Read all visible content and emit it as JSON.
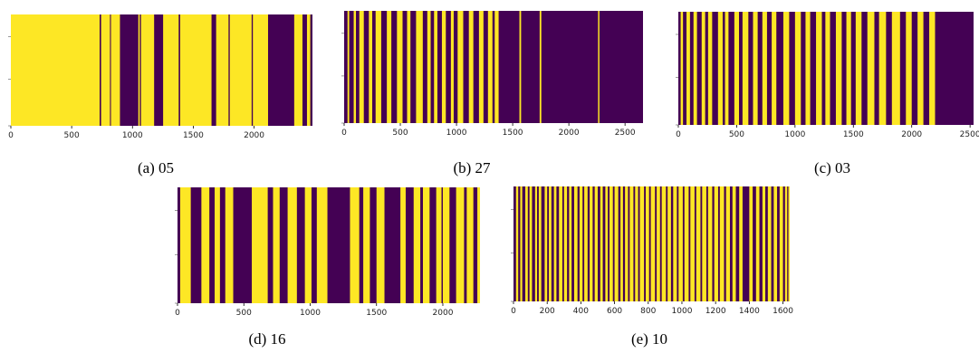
{
  "colors": {
    "on": "#fde725",
    "off": "#440154",
    "axis": "#000000"
  },
  "chart_data": [
    {
      "id": "a",
      "type": "heatmap",
      "caption": "(a) 05",
      "xlim": [
        0,
        2480
      ],
      "xticks": [
        0,
        500,
        1000,
        1500,
        2000
      ],
      "off_intervals": [
        [
          730,
          742
        ],
        [
          815,
          823
        ],
        [
          897,
          1048
        ],
        [
          1060,
          1070
        ],
        [
          1178,
          1252
        ],
        [
          1380,
          1392
        ],
        [
          1650,
          1688
        ],
        [
          1790,
          1800
        ],
        [
          1980,
          1990
        ],
        [
          2115,
          2330
        ],
        [
          2398,
          2435
        ],
        [
          2462,
          2480
        ]
      ]
    },
    {
      "id": "b",
      "type": "heatmap",
      "caption": "(b) 27",
      "xlim": [
        0,
        2660
      ],
      "xticks": [
        0,
        500,
        1000,
        1500,
        2000,
        2500
      ],
      "off_intervals": [
        [
          0,
          30
        ],
        [
          45,
          85
        ],
        [
          105,
          135
        ],
        [
          175,
          220
        ],
        [
          250,
          280
        ],
        [
          330,
          380
        ],
        [
          420,
          470
        ],
        [
          520,
          560
        ],
        [
          590,
          640
        ],
        [
          700,
          740
        ],
        [
          770,
          800
        ],
        [
          830,
          870
        ],
        [
          905,
          950
        ],
        [
          975,
          1010
        ],
        [
          1060,
          1110
        ],
        [
          1150,
          1200
        ],
        [
          1240,
          1280
        ],
        [
          1320,
          1340
        ],
        [
          1375,
          1560
        ],
        [
          1575,
          1740
        ],
        [
          1755,
          2260
        ],
        [
          2272,
          2660
        ]
      ]
    },
    {
      "id": "c",
      "type": "heatmap",
      "caption": "(c) 03",
      "xlim": [
        0,
        2530
      ],
      "xticks": [
        0,
        500,
        1000,
        1500,
        2000,
        2500
      ],
      "off_intervals": [
        [
          0,
          20
        ],
        [
          40,
          70
        ],
        [
          100,
          130
        ],
        [
          160,
          200
        ],
        [
          230,
          255
        ],
        [
          290,
          340
        ],
        [
          380,
          400
        ],
        [
          430,
          480
        ],
        [
          520,
          550
        ],
        [
          600,
          640
        ],
        [
          680,
          720
        ],
        [
          760,
          800
        ],
        [
          840,
          900
        ],
        [
          950,
          1000
        ],
        [
          1050,
          1090
        ],
        [
          1130,
          1180
        ],
        [
          1230,
          1260
        ],
        [
          1300,
          1350
        ],
        [
          1400,
          1440
        ],
        [
          1480,
          1520
        ],
        [
          1570,
          1620
        ],
        [
          1680,
          1720
        ],
        [
          1780,
          1830
        ],
        [
          1900,
          1950
        ],
        [
          2000,
          2050
        ],
        [
          2100,
          2150
        ],
        [
          2200,
          2530
        ]
      ]
    },
    {
      "id": "d",
      "type": "heatmap",
      "caption": "(d) 16",
      "xlim": [
        0,
        2280
      ],
      "xticks": [
        0,
        500,
        1000,
        1500,
        2000
      ],
      "off_intervals": [
        [
          0,
          20
        ],
        [
          100,
          180
        ],
        [
          240,
          280
        ],
        [
          320,
          360
        ],
        [
          420,
          560
        ],
        [
          680,
          720
        ],
        [
          770,
          830
        ],
        [
          900,
          960
        ],
        [
          1010,
          1050
        ],
        [
          1130,
          1300
        ],
        [
          1370,
          1400
        ],
        [
          1450,
          1500
        ],
        [
          1560,
          1680
        ],
        [
          1720,
          1780
        ],
        [
          1830,
          1850
        ],
        [
          1900,
          1950
        ],
        [
          1990,
          2000
        ],
        [
          2050,
          2100
        ],
        [
          2160,
          2180
        ],
        [
          2230,
          2260
        ]
      ]
    },
    {
      "id": "e",
      "type": "heatmap",
      "caption": "(e) 10",
      "xlim": [
        0,
        1640
      ],
      "xticks": [
        0,
        200,
        400,
        600,
        800,
        1000,
        1200,
        1400,
        1600
      ],
      "off_intervals": [
        [
          0,
          15
        ],
        [
          28,
          40
        ],
        [
          52,
          70
        ],
        [
          85,
          95
        ],
        [
          110,
          128
        ],
        [
          140,
          150
        ],
        [
          165,
          185
        ],
        [
          200,
          210
        ],
        [
          225,
          240
        ],
        [
          255,
          270
        ],
        [
          290,
          300
        ],
        [
          318,
          330
        ],
        [
          345,
          360
        ],
        [
          380,
          392
        ],
        [
          410,
          420
        ],
        [
          440,
          452
        ],
        [
          470,
          482
        ],
        [
          500,
          515
        ],
        [
          530,
          545
        ],
        [
          560,
          570
        ],
        [
          590,
          600
        ],
        [
          622,
          635
        ],
        [
          650,
          662
        ],
        [
          680,
          690
        ],
        [
          712,
          722
        ],
        [
          740,
          750
        ],
        [
          775,
          785
        ],
        [
          805,
          815
        ],
        [
          840,
          850
        ],
        [
          870,
          880
        ],
        [
          905,
          915
        ],
        [
          935,
          948
        ],
        [
          970,
          980
        ],
        [
          1005,
          1015
        ],
        [
          1040,
          1050
        ],
        [
          1075,
          1085
        ],
        [
          1110,
          1120
        ],
        [
          1145,
          1155
        ],
        [
          1180,
          1192
        ],
        [
          1215,
          1225
        ],
        [
          1250,
          1262
        ],
        [
          1285,
          1300
        ],
        [
          1320,
          1340
        ],
        [
          1360,
          1400
        ],
        [
          1420,
          1440
        ],
        [
          1460,
          1478
        ],
        [
          1495,
          1510
        ],
        [
          1530,
          1545
        ],
        [
          1565,
          1580
        ],
        [
          1600,
          1612
        ],
        [
          1625,
          1632
        ]
      ]
    }
  ]
}
